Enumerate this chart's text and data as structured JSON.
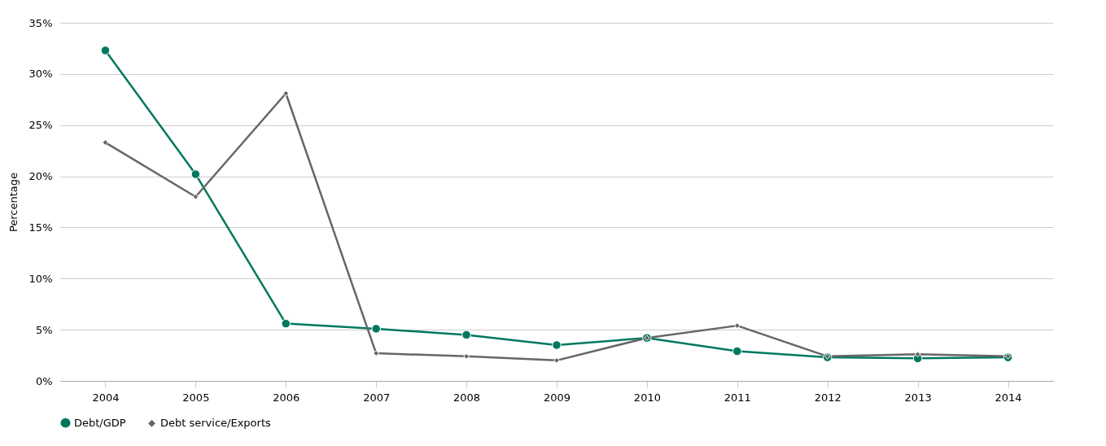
{
  "chart_data": {
    "type": "line",
    "ylabel": "Percentage",
    "categories": [
      "2004",
      "2005",
      "2006",
      "2007",
      "2008",
      "2009",
      "2010",
      "2011",
      "2012",
      "2013",
      "2014"
    ],
    "series": [
      {
        "name": "Debt/GDP",
        "color": "#00785f",
        "marker": "circle",
        "values": [
          32.3,
          20.2,
          5.6,
          5.1,
          4.5,
          3.5,
          4.2,
          2.9,
          2.3,
          2.2,
          2.3
        ]
      },
      {
        "name": "Debt service/Exports",
        "color": "#666666",
        "marker": "diamond",
        "values": [
          23.3,
          18.0,
          28.1,
          2.7,
          2.4,
          2.0,
          4.2,
          5.4,
          2.4,
          2.6,
          2.4
        ]
      }
    ],
    "ylim": [
      0,
      35
    ],
    "yticks": [
      {
        "value": 0,
        "label": "0%"
      },
      {
        "value": 5,
        "label": "5%"
      },
      {
        "value": 10,
        "label": "10%"
      },
      {
        "value": 15,
        "label": "15%"
      },
      {
        "value": 20,
        "label": "20%"
      },
      {
        "value": 25,
        "label": "25%"
      },
      {
        "value": 30,
        "label": "30%"
      },
      {
        "value": 35,
        "label": "35%"
      }
    ],
    "grid": "y",
    "legend": "bottom",
    "line_style": "solid"
  }
}
